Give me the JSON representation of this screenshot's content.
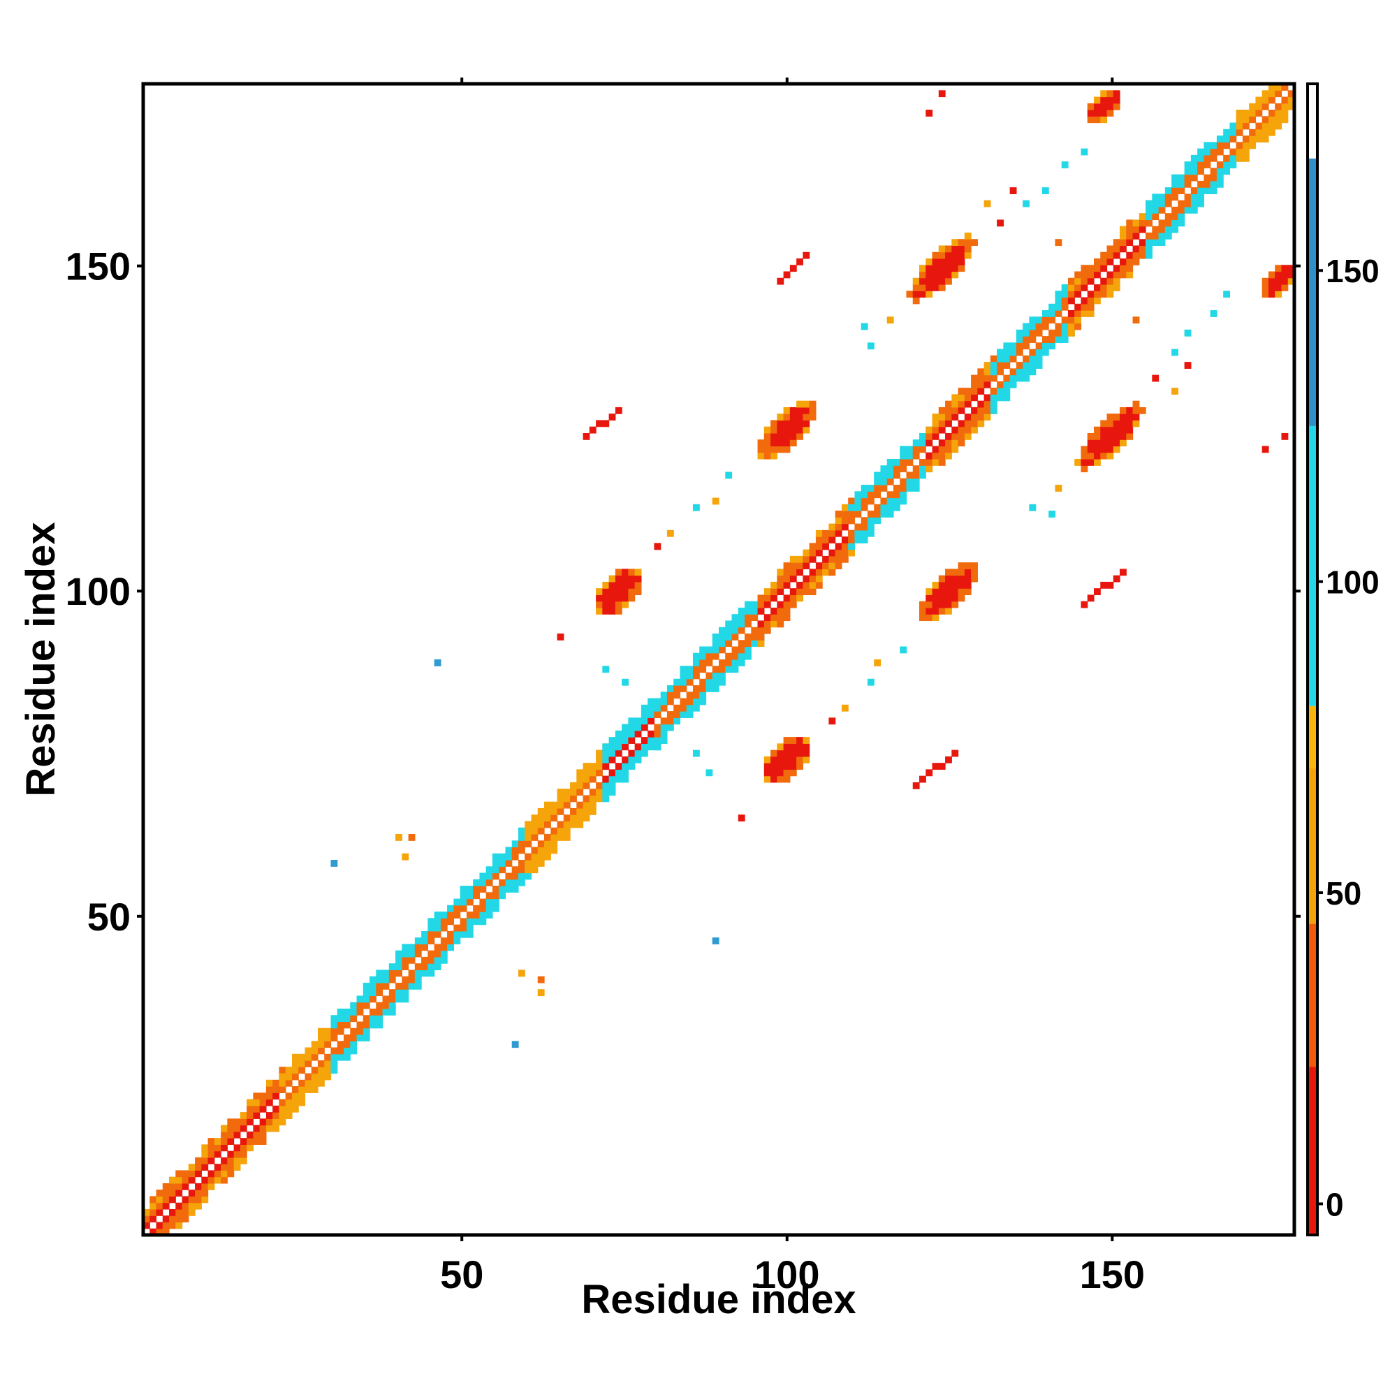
{
  "chart_data": {
    "type": "heatmap",
    "xlabel": "Residue index",
    "ylabel": "Residue index",
    "xlim": [
      1,
      178
    ],
    "ylim": [
      1,
      178
    ],
    "x_ticks": [
      50,
      100,
      150
    ],
    "y_ticks": [
      50,
      100,
      150
    ],
    "colorbar": {
      "ticks": [
        0,
        50,
        100,
        150
      ],
      "range": [
        -5,
        180
      ],
      "segments": [
        {
          "from": -5,
          "to": 22,
          "color": "#e8170e"
        },
        {
          "from": 22,
          "to": 45,
          "color": "#f05a0a"
        },
        {
          "from": 45,
          "to": 70,
          "color": "#f5a10a"
        },
        {
          "from": 70,
          "to": 80,
          "color": "#f7b50c"
        },
        {
          "from": 80,
          "to": 125,
          "color": "#22d8e6"
        },
        {
          "from": 125,
          "to": 168,
          "color": "#2f8fc6"
        },
        {
          "from": 168,
          "to": 180,
          "color": "#ffffff"
        }
      ]
    },
    "category_colors": {
      "red": "#e8170e",
      "orange": "#f16a0c",
      "amber": "#f5a40a",
      "cyan": "#22d8e6",
      "blue": "#2f9bd0"
    },
    "diagonal_band": {
      "from_residue": 1,
      "to_residue": 178,
      "regions": [
        {
          "from": 1,
          "to": 22,
          "pattern": "red-orange"
        },
        {
          "from": 22,
          "to": 30,
          "pattern": "orange"
        },
        {
          "from": 30,
          "to": 48,
          "pattern": "cyan-orange"
        },
        {
          "from": 48,
          "to": 60,
          "pattern": "cyan-orange"
        },
        {
          "from": 60,
          "to": 72,
          "pattern": "orange-amber"
        },
        {
          "from": 72,
          "to": 80,
          "pattern": "cyan-red"
        },
        {
          "from": 80,
          "to": 96,
          "pattern": "cyan-orange"
        },
        {
          "from": 96,
          "to": 110,
          "pattern": "red-orange"
        },
        {
          "from": 110,
          "to": 122,
          "pattern": "cyan-orange"
        },
        {
          "from": 122,
          "to": 132,
          "pattern": "red-orange"
        },
        {
          "from": 132,
          "to": 144,
          "pattern": "cyan-orange"
        },
        {
          "from": 144,
          "to": 156,
          "pattern": "red-orange"
        },
        {
          "from": 156,
          "to": 170,
          "pattern": "cyan-orange"
        },
        {
          "from": 170,
          "to": 178,
          "pattern": "orange-amber"
        }
      ]
    },
    "contact_blobs": [
      {
        "cx": 74,
        "cy": 100,
        "rx": 5,
        "ry": 2.4
      },
      {
        "cx": 100,
        "cy": 74,
        "rx": 5,
        "ry": 2.4
      },
      {
        "cx": 100,
        "cy": 125,
        "rx": 6,
        "ry": 2.4
      },
      {
        "cx": 125,
        "cy": 100,
        "rx": 6,
        "ry": 2.4
      },
      {
        "cx": 124,
        "cy": 150,
        "rx": 7,
        "ry": 2.4
      },
      {
        "cx": 150,
        "cy": 124,
        "rx": 7,
        "ry": 2.4
      },
      {
        "cx": 149,
        "cy": 175,
        "rx": 3.5,
        "ry": 1.6
      },
      {
        "cx": 176,
        "cy": 148,
        "rx": 3.5,
        "ry": 1.6
      }
    ],
    "contact_lines": [
      {
        "x1": 99,
        "y1": 148,
        "x2": 103,
        "y2": 152
      },
      {
        "x1": 69,
        "y1": 124,
        "x2": 74,
        "y2": 128
      },
      {
        "x1": 120,
        "y1": 70,
        "x2": 126,
        "y2": 75
      },
      {
        "x1": 146,
        "y1": 98,
        "x2": 152,
        "y2": 103
      }
    ],
    "scattered_points": [
      {
        "x": 42,
        "y": 62,
        "c": "orange"
      },
      {
        "x": 40,
        "y": 62,
        "c": "amber"
      },
      {
        "x": 30,
        "y": 58,
        "c": "blue"
      },
      {
        "x": 41,
        "y": 59,
        "c": "amber"
      },
      {
        "x": 62,
        "y": 40,
        "c": "orange"
      },
      {
        "x": 62,
        "y": 38,
        "c": "amber"
      },
      {
        "x": 58,
        "y": 30,
        "c": "blue"
      },
      {
        "x": 59,
        "y": 41,
        "c": "amber"
      },
      {
        "x": 46,
        "y": 89,
        "c": "blue"
      },
      {
        "x": 89,
        "y": 46,
        "c": "blue"
      },
      {
        "x": 65,
        "y": 93,
        "c": "red"
      },
      {
        "x": 93,
        "y": 65,
        "c": "red"
      },
      {
        "x": 72,
        "y": 88,
        "c": "cyan"
      },
      {
        "x": 88,
        "y": 72,
        "c": "cyan"
      },
      {
        "x": 75,
        "y": 86,
        "c": "cyan"
      },
      {
        "x": 86,
        "y": 75,
        "c": "cyan"
      },
      {
        "x": 80,
        "y": 107,
        "c": "red"
      },
      {
        "x": 107,
        "y": 80,
        "c": "red"
      },
      {
        "x": 82,
        "y": 109,
        "c": "amber"
      },
      {
        "x": 109,
        "y": 82,
        "c": "amber"
      },
      {
        "x": 86,
        "y": 113,
        "c": "cyan"
      },
      {
        "x": 113,
        "y": 86,
        "c": "cyan"
      },
      {
        "x": 89,
        "y": 114,
        "c": "amber"
      },
      {
        "x": 114,
        "y": 89,
        "c": "amber"
      },
      {
        "x": 91,
        "y": 118,
        "c": "cyan"
      },
      {
        "x": 118,
        "y": 91,
        "c": "cyan"
      },
      {
        "x": 112,
        "y": 141,
        "c": "cyan"
      },
      {
        "x": 141,
        "y": 112,
        "c": "cyan"
      },
      {
        "x": 113,
        "y": 138,
        "c": "cyan"
      },
      {
        "x": 138,
        "y": 113,
        "c": "cyan"
      },
      {
        "x": 116,
        "y": 142,
        "c": "amber"
      },
      {
        "x": 142,
        "y": 116,
        "c": "amber"
      },
      {
        "x": 133,
        "y": 157,
        "c": "red"
      },
      {
        "x": 157,
        "y": 133,
        "c": "red"
      },
      {
        "x": 137,
        "y": 160,
        "c": "cyan"
      },
      {
        "x": 160,
        "y": 137,
        "c": "cyan"
      },
      {
        "x": 140,
        "y": 162,
        "c": "cyan"
      },
      {
        "x": 162,
        "y": 140,
        "c": "cyan"
      },
      {
        "x": 143,
        "y": 166,
        "c": "cyan"
      },
      {
        "x": 166,
        "y": 143,
        "c": "cyan"
      },
      {
        "x": 146,
        "y": 168,
        "c": "cyan"
      },
      {
        "x": 168,
        "y": 146,
        "c": "cyan"
      },
      {
        "x": 131,
        "y": 160,
        "c": "amber"
      },
      {
        "x": 160,
        "y": 131,
        "c": "amber"
      },
      {
        "x": 154,
        "y": 142,
        "c": "orange"
      },
      {
        "x": 142,
        "y": 154,
        "c": "orange"
      },
      {
        "x": 177,
        "y": 124,
        "c": "red"
      },
      {
        "x": 124,
        "y": 177,
        "c": "red"
      },
      {
        "x": 162,
        "y": 135,
        "c": "red"
      },
      {
        "x": 135,
        "y": 162,
        "c": "red"
      },
      {
        "x": 122,
        "y": 174,
        "c": "red"
      },
      {
        "x": 174,
        "y": 122,
        "c": "red"
      }
    ]
  }
}
